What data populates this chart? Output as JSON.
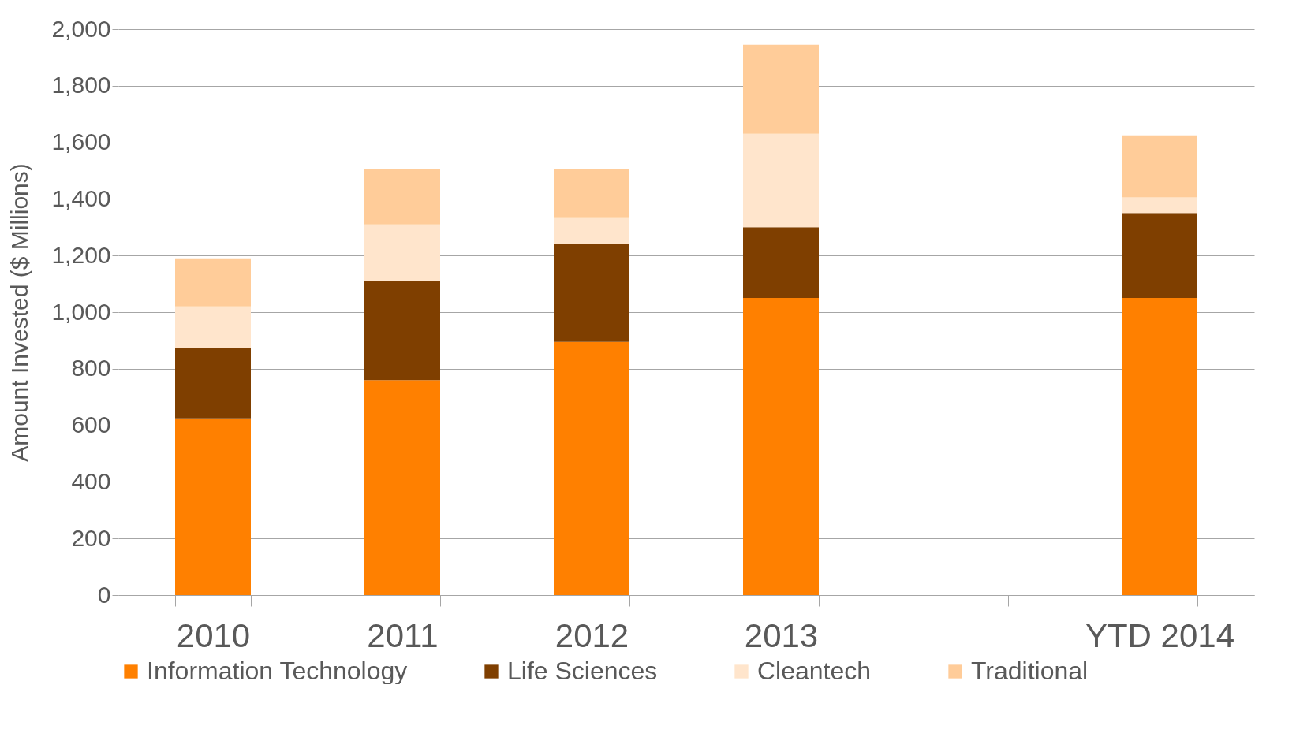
{
  "chart_data": {
    "type": "bar",
    "stacked": true,
    "ylabel": "Amount Invested ($ Millions)",
    "categories": [
      "2010",
      "2011",
      "2012",
      "2013",
      null,
      "YTD 2014"
    ],
    "series": [
      {
        "name": "Information Technology",
        "color": "#ff8000",
        "values": [
          625,
          760,
          895,
          1050,
          null,
          1050
        ]
      },
      {
        "name": "Life Sciences",
        "color": "#7f3f00",
        "values": [
          250,
          350,
          345,
          250,
          null,
          300
        ]
      },
      {
        "name": "Cleantech",
        "color": "#ffe5cc",
        "values": [
          145,
          200,
          95,
          330,
          null,
          55
        ]
      },
      {
        "name": "Traditional",
        "color": "#ffcc99",
        "values": [
          170,
          195,
          170,
          315,
          null,
          220
        ]
      }
    ],
    "ylim": [
      0,
      2000
    ],
    "yticks": [
      {
        "value": 0,
        "label": "0"
      },
      {
        "value": 200,
        "label": "200"
      },
      {
        "value": 400,
        "label": "400"
      },
      {
        "value": 600,
        "label": "600"
      },
      {
        "value": 800,
        "label": "800"
      },
      {
        "value": 1000,
        "label": "1,000"
      },
      {
        "value": 1200,
        "label": "1,200"
      },
      {
        "value": 1400,
        "label": "1,400"
      },
      {
        "value": 1600,
        "label": "1,600"
      },
      {
        "value": 1800,
        "label": "1,800"
      },
      {
        "value": 2000,
        "label": "2,000"
      }
    ],
    "grid": "y",
    "legend": "bottom"
  }
}
